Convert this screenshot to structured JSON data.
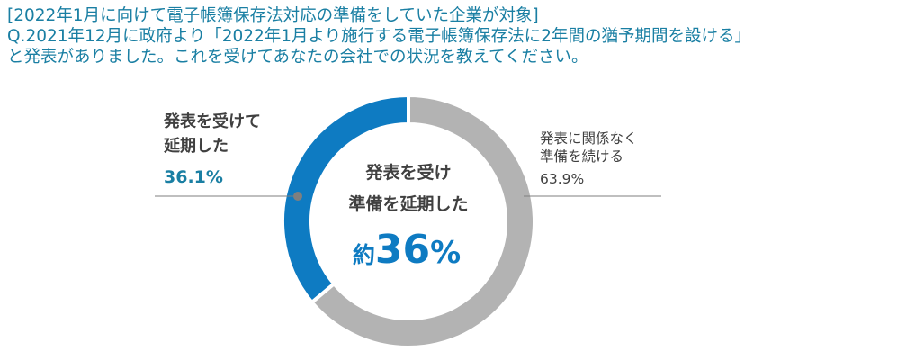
{
  "header": {
    "line1": "[2022年1月に向けて電子帳簿保存法対応の準備をしていた企業が対象]",
    "line2": "Q.2021年12月に政府より「2022年1月より施行する電子帳簿保存法に2年間の猶予期間を設ける」",
    "line3": "と発表がありました。これを受けてあなたの会社での状況を教えてください。"
  },
  "center": {
    "line1": "発表を受け",
    "line2": "準備を延期した",
    "big_prefix": "約",
    "big_number": "36",
    "big_unit": "%"
  },
  "chart_data": {
    "type": "pie",
    "donut": true,
    "title": "",
    "slices": [
      {
        "label_lines": [
          "発表を受けて",
          "延期した"
        ],
        "value": 36.1,
        "value_label": "36.1%",
        "color": "#0e7bc2"
      },
      {
        "label_lines": [
          "発表に関係なく",
          "準備を続ける"
        ],
        "value": 63.9,
        "value_label": "63.9%",
        "color": "#b3b3b3"
      }
    ]
  }
}
